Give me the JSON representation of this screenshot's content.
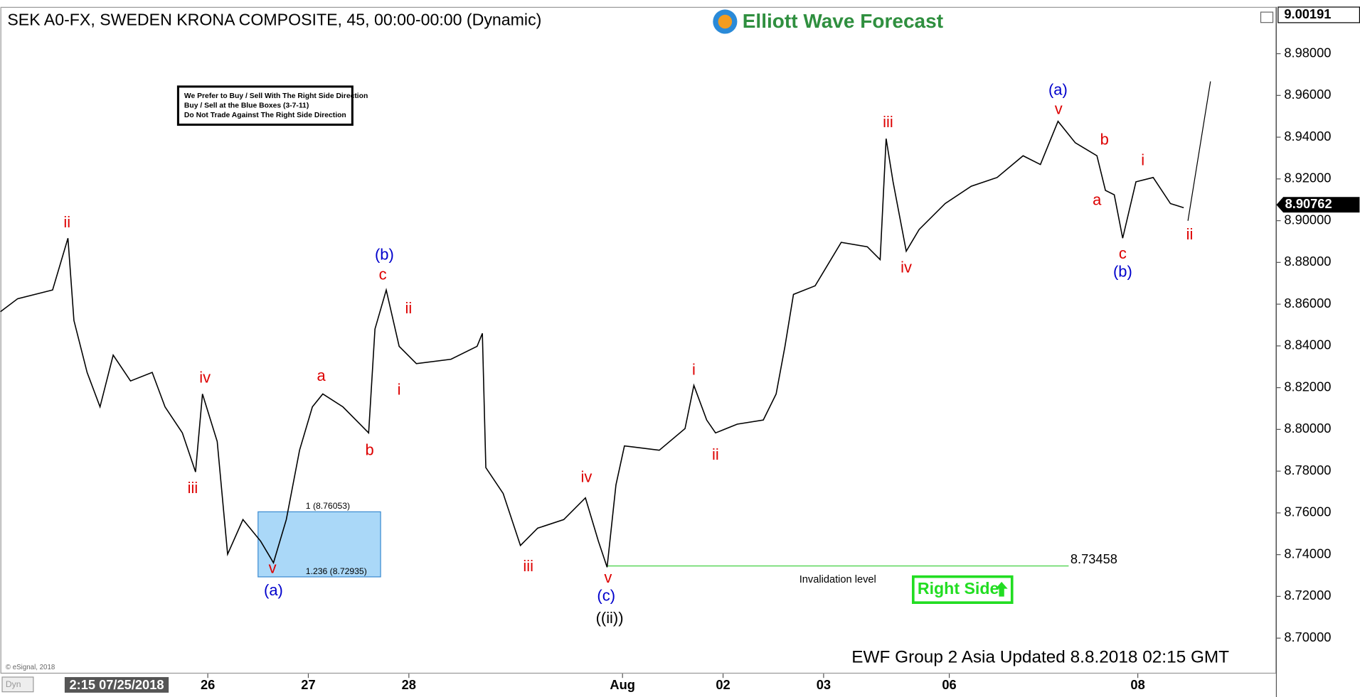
{
  "chart_data": {
    "type": "line",
    "title": "SEK A0-FX, SWEDEN KRONA COMPOSITE, 45, 00:00-00:00 (Dynamic)",
    "logo": "Elliott Wave Forecast",
    "notes": [
      "We Prefer to Buy / Sell With The Right Side Direction",
      "Buy / Sell at the Blue Boxes (3-7-11)",
      "Do Not Trade Against The Right Side Direction"
    ],
    "right_side": "Right Side",
    "footer": "EWF Group 2 Asia Updated 8.8.2018 02:15 GMT",
    "copyright": "© eSignal, 2018",
    "mode": "Dyn",
    "color": "#000000",
    "x": [
      0,
      5.5,
      16.6,
      21.5,
      23.4,
      27.6,
      31.7,
      35.9,
      41.4,
      48.3,
      52.4,
      57.9,
      62.1,
      64.3,
      69,
      72.3,
      77.2,
      82.8,
      86.9,
      91,
      95.2,
      99.3,
      102.6,
      109,
      117.2,
      119.2,
      122.8,
      126.9,
      132.4,
      143.4,
      151.7,
      153.4,
      154.5,
      160,
      165.5,
      171,
      179.3,
      186.2,
      190.3,
      193.1,
      195.9,
      198.6,
      209.7,
      217.9,
      220.7,
      224.8,
      227.6,
      234.5,
      242.8,
      246.9,
      249.7,
      252.4,
      259.3,
      267.6,
      275.9,
      280,
      281.9,
      284.1,
      288.3,
      292.4,
      300.7,
      309,
      317.2,
      325.5,
      331,
      336.6,
      342.1,
      349,
      351.7,
      354.5,
      357.2,
      361.4,
      366.9,
      372.4,
      376.6
    ],
    "values": [
      8.8564,
      8.8626,
      8.8668,
      8.8916,
      8.8522,
      8.8273,
      8.8108,
      8.8356,
      8.8232,
      8.8273,
      8.8108,
      8.7983,
      8.7796,
      8.817,
      8.7942,
      8.7402,
      8.7568,
      8.7465,
      8.7361,
      8.7568,
      8.79,
      8.8108,
      8.817,
      8.8108,
      8.7983,
      8.8481,
      8.8668,
      8.8398,
      8.8315,
      8.8336,
      8.8398,
      8.846,
      8.7817,
      8.7693,
      8.7444,
      8.7527,
      8.7568,
      8.7672,
      8.7465,
      8.734,
      8.7734,
      8.7921,
      8.79,
      8.8004,
      8.8211,
      8.8045,
      8.7983,
      8.8025,
      8.8045,
      8.817,
      8.8398,
      8.8647,
      8.8688,
      8.8896,
      8.8875,
      8.8813,
      8.9393,
      8.9186,
      8.8854,
      8.8958,
      8.9082,
      8.9165,
      8.9207,
      8.9311,
      8.9269,
      8.9476,
      8.9373,
      8.9311,
      8.9145,
      8.9124,
      8.8916,
      8.9186,
      8.9207,
      8.9082,
      8.9062
    ],
    "xlim": [
      0,
      405
    ],
    "xticks": [
      {
        "value": 66,
        "label": "26"
      },
      {
        "value": 98,
        "label": "27"
      },
      {
        "value": 130,
        "label": "28"
      },
      {
        "value": 198,
        "label": "Aug"
      },
      {
        "value": 230,
        "label": "02"
      },
      {
        "value": 262,
        "label": "03"
      },
      {
        "value": 302,
        "label": "06"
      },
      {
        "value": 362,
        "label": "08"
      }
    ],
    "cursor_date": {
      "value": 37,
      "label": "2:15 07/25/2018"
    },
    "ylim": [
      8.683,
      9.0024
    ],
    "yticks": [
      {
        "value": 8.7,
        "label": "8.70000"
      },
      {
        "value": 8.72,
        "label": "8.72000"
      },
      {
        "value": 8.74,
        "label": "8.74000"
      },
      {
        "value": 8.76,
        "label": "8.76000"
      },
      {
        "value": 8.78,
        "label": "8.78000"
      },
      {
        "value": 8.8,
        "label": "8.80000"
      },
      {
        "value": 8.82,
        "label": "8.82000"
      },
      {
        "value": 8.84,
        "label": "8.84000"
      },
      {
        "value": 8.86,
        "label": "8.86000"
      },
      {
        "value": 8.88,
        "label": "8.88000"
      },
      {
        "value": 8.9,
        "label": "8.90000"
      },
      {
        "value": 8.92,
        "label": "8.92000"
      },
      {
        "value": 8.94,
        "label": "8.94000"
      },
      {
        "value": 8.96,
        "label": "8.96000"
      },
      {
        "value": 8.98,
        "label": "8.98000"
      }
    ],
    "top_price": {
      "value": 9.00191,
      "label": "9.00191"
    },
    "last_price": {
      "value": 8.90762,
      "label": "8.90762"
    },
    "fib_box": {
      "x": [
        82,
        121
      ],
      "color": "#aad8f8",
      "levels": [
        {
          "value": 8.76053,
          "label": "1 (8.76053)"
        },
        {
          "value": 8.72935,
          "label": "1.236 (8.72935)"
        }
      ]
    },
    "invalidation": {
      "value": 8.73458,
      "label": "8.73458",
      "text": "Invalidation level",
      "x": [
        193,
        340
      ],
      "color": "#33cc33"
    },
    "annotations": [
      {
        "text": "ii",
        "x": 21.2,
        "y": 8.8987,
        "color": "#dd0000"
      },
      {
        "text": "iii",
        "x": 61.2,
        "y": 8.7714,
        "color": "#dd0000"
      },
      {
        "text": "iv",
        "x": 65.1,
        "y": 8.8244,
        "color": "#dd0000"
      },
      {
        "text": "v",
        "x": 86.6,
        "y": 8.7332,
        "color": "#dd0000"
      },
      {
        "text": "(a)",
        "x": 86.9,
        "y": 8.7224,
        "color": "#0000cc"
      },
      {
        "text": "a",
        "x": 102.1,
        "y": 8.8253,
        "color": "#dd0000"
      },
      {
        "text": "b",
        "x": 117.5,
        "y": 8.7896,
        "color": "#dd0000"
      },
      {
        "text": "c",
        "x": 121.7,
        "y": 8.8738,
        "color": "#dd0000"
      },
      {
        "text": "(b)",
        "x": 122.2,
        "y": 8.8833,
        "color": "#0000cc"
      },
      {
        "text": "ii",
        "x": 129.9,
        "y": 8.8576,
        "color": "#dd0000"
      },
      {
        "text": "i",
        "x": 126.9,
        "y": 8.8186,
        "color": "#dd0000"
      },
      {
        "text": "iii",
        "x": 168,
        "y": 8.734,
        "color": "#dd0000"
      },
      {
        "text": "iv",
        "x": 186.5,
        "y": 8.7767,
        "color": "#dd0000"
      },
      {
        "text": "v",
        "x": 193.4,
        "y": 8.7286,
        "color": "#dd0000"
      },
      {
        "text": "(c)",
        "x": 192.8,
        "y": 8.7199,
        "color": "#0000cc"
      },
      {
        "text": "((ii))",
        "x": 193.9,
        "y": 8.7091,
        "color": "#000000"
      },
      {
        "text": "i",
        "x": 220.7,
        "y": 8.8282,
        "color": "#dd0000"
      },
      {
        "text": "ii",
        "x": 227.6,
        "y": 8.7875,
        "color": "#dd0000"
      },
      {
        "text": "iii",
        "x": 282.5,
        "y": 8.9468,
        "color": "#dd0000"
      },
      {
        "text": "iv",
        "x": 288.3,
        "y": 8.8771,
        "color": "#dd0000"
      },
      {
        "text": "(a)",
        "x": 336.6,
        "y": 8.9622,
        "color": "#0000cc"
      },
      {
        "text": "v",
        "x": 336.8,
        "y": 8.953,
        "color": "#dd0000"
      },
      {
        "text": "b",
        "x": 351.4,
        "y": 8.9385,
        "color": "#dd0000"
      },
      {
        "text": "a",
        "x": 349,
        "y": 8.9095,
        "color": "#dd0000"
      },
      {
        "text": "c",
        "x": 357.2,
        "y": 8.8838,
        "color": "#dd0000"
      },
      {
        "text": "(b)",
        "x": 357.2,
        "y": 8.8751,
        "color": "#0000cc"
      },
      {
        "text": "i",
        "x": 363.6,
        "y": 8.9286,
        "color": "#dd0000"
      },
      {
        "text": "ii",
        "x": 378.5,
        "y": 8.8929,
        "color": "#dd0000"
      }
    ]
  }
}
